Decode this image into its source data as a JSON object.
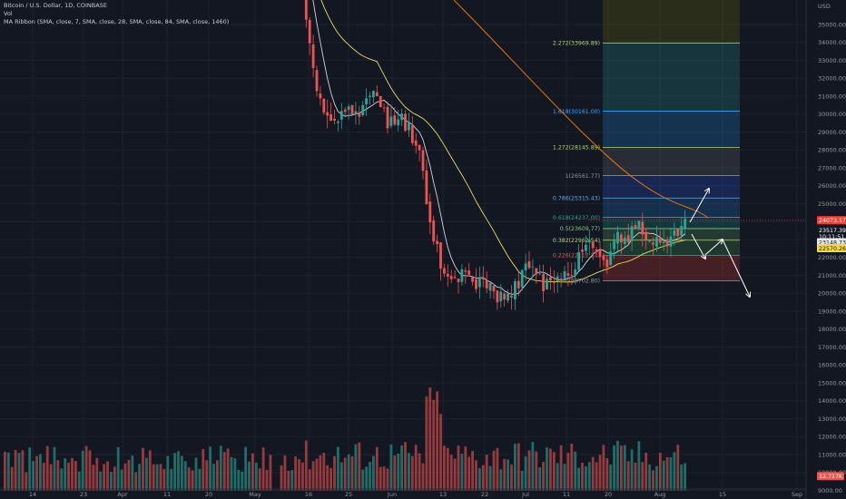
{
  "legend": {
    "symbol": "Bitcoin / U.S. Dollar, 1D, COINBASE",
    "volume": "Vol",
    "ribbon": "MA Ribbon (SMA, close, 7, SMA, close, 28, SMA, close, 84, SMA, close, 1460)"
  },
  "colors": {
    "background": "#131722",
    "up": "#26a69a",
    "down": "#ef5350",
    "ma7": "#d1d4dc",
    "ma28": "#e0e060",
    "ma84": "#f57c00"
  },
  "chart_data": {
    "type": "candlestick",
    "currency": "USD",
    "y_ticks": [
      9000,
      10000,
      11000,
      12000,
      13000,
      14000,
      15000,
      16000,
      17000,
      18000,
      19000,
      20000,
      21000,
      22000,
      23000,
      24000,
      25000,
      26000,
      27000,
      28000,
      29000,
      30000,
      31000,
      32000,
      33000,
      34000,
      35000
    ],
    "y_tick_labels": [
      "9000.00",
      "10000.00",
      "11000.00",
      "12000.00",
      "13000.00",
      "14000.00",
      "15000.00",
      "16000.00",
      "17000.00",
      "18000.00",
      "19000.00",
      "20000.00",
      "21000.00",
      "22000.00",
      "23000.00",
      "24000.00",
      "25000.00",
      "26000.00",
      "27000.00",
      "28000.00",
      "29000.00",
      "30000.00",
      "31000.00",
      "32000.00",
      "33000.00",
      "34000.00",
      "35000.00"
    ],
    "x_tick_labels": [
      "14",
      "23",
      "Apr",
      "11",
      "20",
      "May",
      "16",
      "25",
      "Jun",
      "13",
      "22",
      "Jul",
      "11",
      "20",
      "Aug",
      "15",
      "Sep"
    ],
    "close_keypoints": [
      [
        0,
        41000
      ],
      [
        3,
        39500
      ],
      [
        6,
        36500
      ],
      [
        8,
        34000
      ],
      [
        10,
        31000
      ],
      [
        14,
        29500
      ],
      [
        18,
        30500
      ],
      [
        22,
        29700
      ],
      [
        26,
        31500
      ],
      [
        30,
        29500
      ],
      [
        33,
        30000
      ],
      [
        36,
        29200
      ],
      [
        39,
        28000
      ],
      [
        42,
        24000
      ],
      [
        44,
        22500
      ],
      [
        46,
        21000
      ],
      [
        48,
        20600
      ],
      [
        52,
        21400
      ],
      [
        55,
        20600
      ],
      [
        58,
        20400
      ],
      [
        61,
        19600
      ],
      [
        63,
        19800
      ],
      [
        66,
        20300
      ],
      [
        69,
        21400
      ],
      [
        71,
        21600
      ],
      [
        74,
        20400
      ],
      [
        77,
        20600
      ],
      [
        80,
        21000
      ],
      [
        83,
        21600
      ],
      [
        86,
        23000
      ],
      [
        89,
        22700
      ],
      [
        92,
        21800
      ],
      [
        95,
        23200
      ],
      [
        97,
        22700
      ],
      [
        100,
        23800
      ],
      [
        103,
        23300
      ],
      [
        106,
        23000
      ],
      [
        109,
        22800
      ],
      [
        112,
        23300
      ],
      [
        114,
        24000
      ]
    ],
    "last_close": 24073.17,
    "fib_levels": [
      {
        "label": "0.226(22112.24)",
        "price": 22112.24,
        "color": "#ef5350"
      },
      {
        "label": "0.382(22962.54)",
        "price": 22962.54,
        "color": "#b2d27a"
      },
      {
        "label": "0.5(23609.77)",
        "price": 23609.77,
        "color": "#81c784"
      },
      {
        "label": "0.618(24237.00)",
        "price": 24237.0,
        "color": "#26a69a"
      },
      {
        "label": "0.786(25315.43)",
        "price": 25315.43,
        "color": "#5ea8e8"
      },
      {
        "label": "1(26561.77)",
        "price": 26561.77,
        "color": "#9598a1"
      },
      {
        "label": "1.272(28145.89)",
        "price": 28145.89,
        "color": "#b2d27a"
      },
      {
        "label": "1.618(30161.00)",
        "price": 30161.0,
        "color": "#42a5f5"
      },
      {
        "label": "2.272(33969.89)",
        "price": 33969.89,
        "color": "#b2d27a"
      }
    ],
    "fib_zero_label": "0(20702.80)",
    "price_tags": [
      {
        "text": "24073.17",
        "bg": "#f44336",
        "fg": "#ffffff",
        "price": 24073.17
      },
      {
        "text": "23517.39",
        "bg": "#131722",
        "fg": "#ffffff",
        "price": 23517.39
      },
      {
        "text": "10:11:51",
        "bg": "#131722",
        "fg": "#ffffff",
        "price": 23170
      },
      {
        "text": "23148.73",
        "bg": "#e8e8e8",
        "fg": "#131722",
        "price": 22850
      },
      {
        "text": "22570.26",
        "bg": "#f2d94e",
        "fg": "#131722",
        "price": 22520
      }
    ],
    "volume_tag": "12.717K"
  }
}
